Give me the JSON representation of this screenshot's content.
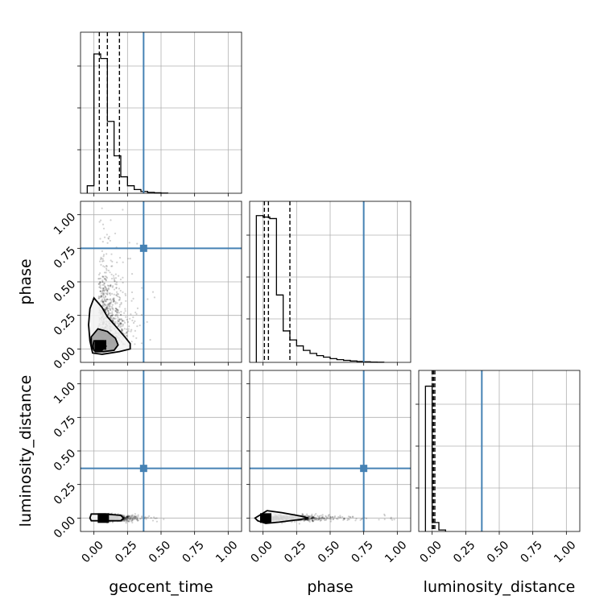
{
  "chart_data": {
    "type": "corner",
    "parameters": [
      "geocent_time",
      "phase",
      "luminosity_distance"
    ],
    "axis_labels": {
      "x": [
        "geocent_time",
        "phase",
        "luminosity_distance"
      ],
      "y": [
        "",
        "phase",
        "luminosity_distance"
      ]
    },
    "axis_range": [
      -0.1,
      1.1
    ],
    "tick_values": [
      0.0,
      0.25,
      0.5,
      0.75,
      1.0
    ],
    "tick_labels": [
      "0.00",
      "0.25",
      "0.50",
      "0.75",
      "1.00"
    ],
    "grid": true,
    "truth_values": {
      "geocent_time": 0.37,
      "phase": 0.75,
      "luminosity_distance": 0.37
    },
    "colors": {
      "truth": "#4682b4",
      "hist": "#000000",
      "points": "#000000",
      "grid": "#b0b0b0"
    },
    "marginals": {
      "geocent_time": {
        "bin_edges": [
          -0.05,
          0.0,
          0.05,
          0.1,
          0.15,
          0.2,
          0.25,
          0.3,
          0.35,
          0.4,
          0.45,
          0.5,
          0.55
        ],
        "counts": [
          0.05,
          0.93,
          0.9,
          0.48,
          0.25,
          0.11,
          0.05,
          0.025,
          0.012,
          0.006,
          0.003,
          0.001
        ],
        "quantiles": [
          0.04,
          0.1,
          0.19
        ]
      },
      "phase": {
        "bin_edges": [
          -0.05,
          0.0,
          0.05,
          0.1,
          0.15,
          0.2,
          0.25,
          0.3,
          0.35,
          0.4,
          0.45,
          0.5,
          0.55,
          0.6,
          0.65,
          0.7,
          0.75,
          0.8,
          0.85,
          0.9
        ],
        "counts": [
          0.98,
          0.97,
          0.96,
          0.45,
          0.21,
          0.15,
          0.11,
          0.08,
          0.06,
          0.045,
          0.035,
          0.025,
          0.018,
          0.013,
          0.009,
          0.006,
          0.004,
          0.002,
          0.001
        ],
        "quantiles": [
          0.01,
          0.04,
          0.2
        ]
      },
      "luminosity_distance": {
        "bin_edges": [
          -0.05,
          0.0,
          0.05,
          0.1
        ],
        "counts": [
          0.97,
          0.06,
          0.01
        ],
        "quantiles": [
          0.0,
          0.01,
          0.02
        ]
      }
    },
    "scatter_2d": [
      {
        "x": "geocent_time",
        "y": "phase",
        "dense_core": {
          "x": 0.05,
          "y": 0.03
        },
        "contours": [
          {
            "points": [
              [
                0.0,
                0.38
              ],
              [
                0.06,
                0.31
              ],
              [
                0.1,
                0.24
              ],
              [
                0.17,
                0.16
              ],
              [
                0.23,
                0.09
              ],
              [
                0.27,
                0.04
              ],
              [
                0.27,
                0.0
              ],
              [
                0.19,
                -0.02
              ],
              [
                0.06,
                -0.04
              ],
              [
                -0.01,
                -0.03
              ],
              [
                -0.03,
                0.06
              ],
              [
                -0.04,
                0.18
              ],
              [
                -0.03,
                0.3
              ]
            ]
          },
          {
            "points": [
              [
                0.03,
                0.15
              ],
              [
                0.1,
                0.13
              ],
              [
                0.16,
                0.08
              ],
              [
                0.18,
                0.03
              ],
              [
                0.15,
                -0.01
              ],
              [
                0.07,
                -0.02
              ],
              [
                0.01,
                -0.02
              ],
              [
                -0.02,
                0.02
              ],
              [
                -0.02,
                0.09
              ]
            ]
          },
          {
            "points": [
              [
                0.0,
                0.06
              ],
              [
                0.07,
                0.06
              ],
              [
                0.09,
                0.02
              ],
              [
                0.06,
                -0.01
              ],
              [
                0.0,
                -0.01
              ],
              [
                -0.01,
                0.02
              ]
            ]
          }
        ]
      },
      {
        "x": "geocent_time",
        "y": "luminosity_distance",
        "dense_core": {
          "x": 0.07,
          "y": 0.0
        },
        "contours": [
          {
            "points": [
              [
                -0.02,
                0.03
              ],
              [
                0.08,
                0.03
              ],
              [
                0.2,
                0.02
              ],
              [
                0.22,
                0.0
              ],
              [
                0.2,
                -0.02
              ],
              [
                0.08,
                -0.02
              ],
              [
                -0.02,
                -0.02
              ],
              [
                -0.03,
                0.0
              ]
            ]
          }
        ]
      },
      {
        "x": "phase",
        "y": "luminosity_distance",
        "dense_core": {
          "x": 0.02,
          "y": 0.0
        },
        "contours": [
          {
            "points": [
              [
                -0.06,
                0.0
              ],
              [
                0.03,
                0.055
              ],
              [
                0.14,
                0.04
              ],
              [
                0.28,
                0.015
              ],
              [
                0.34,
                0.0
              ],
              [
                0.28,
                -0.01
              ],
              [
                0.12,
                -0.03
              ],
              [
                0.02,
                -0.04
              ],
              [
                -0.04,
                -0.02
              ]
            ]
          }
        ]
      }
    ]
  }
}
